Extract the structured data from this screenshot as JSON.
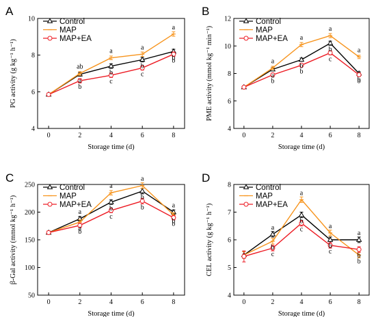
{
  "colors": {
    "Control": "#000000",
    "MAP": "#f7941d",
    "MAP+EA": "#ed1c24"
  },
  "chart_data": [
    {
      "type": "line",
      "panel": "A",
      "xlabel": "Storage time (d)",
      "ylabel": "PG activity (g kg⁻¹ h⁻¹)",
      "x": [
        0,
        2,
        4,
        6,
        8
      ],
      "xticks": [
        "0",
        "2",
        "4",
        "6",
        "8"
      ],
      "ylim": [
        4,
        10
      ],
      "yticks": [
        "4",
        "6",
        "8",
        "10"
      ],
      "legend": "top-left",
      "series": [
        {
          "name": "Control",
          "values": [
            5.85,
            6.95,
            7.4,
            7.75,
            8.2
          ],
          "err": [
            0.08,
            0.1,
            0.12,
            0.12,
            0.12
          ],
          "labels": [
            "",
            "a",
            "b",
            "b",
            "b"
          ]
        },
        {
          "name": "MAP",
          "values": [
            5.85,
            7.0,
            7.85,
            8.05,
            9.15
          ],
          "err": [
            0.08,
            0.1,
            0.1,
            0.12,
            0.12
          ],
          "labels": [
            "",
            "ab",
            "a",
            "a",
            "a"
          ]
        },
        {
          "name": "MAP+EA",
          "values": [
            5.85,
            6.6,
            6.9,
            7.3,
            8.05
          ],
          "err": [
            0.08,
            0.12,
            0.12,
            0.12,
            0.12
          ],
          "labels": [
            "",
            "b",
            "c",
            "c",
            "b"
          ]
        }
      ]
    },
    {
      "type": "line",
      "panel": "B",
      "xlabel": "Storage time (d)",
      "ylabel": "PME activity (mmol kg⁻¹ min⁻¹)",
      "x": [
        0,
        2,
        4,
        6,
        8
      ],
      "xticks": [
        "0",
        "2",
        "4",
        "6",
        "8"
      ],
      "ylim": [
        4,
        12
      ],
      "yticks": [
        "4",
        "6",
        "8",
        "10",
        "12"
      ],
      "legend": "top-left",
      "series": [
        {
          "name": "Control",
          "values": [
            7.0,
            8.3,
            9.0,
            10.2,
            8.0
          ],
          "err": [
            0.1,
            0.12,
            0.12,
            0.15,
            0.12
          ],
          "labels": [
            "",
            "a",
            "b",
            "b",
            "b"
          ]
        },
        {
          "name": "MAP",
          "values": [
            7.0,
            8.4,
            10.1,
            10.75,
            9.2
          ],
          "err": [
            0.1,
            0.12,
            0.15,
            0.15,
            0.12
          ],
          "labels": [
            "",
            "a",
            "a",
            "a",
            "a"
          ]
        },
        {
          "name": "MAP+EA",
          "values": [
            7.0,
            7.9,
            8.6,
            9.5,
            7.9
          ],
          "err": [
            0.1,
            0.12,
            0.12,
            0.15,
            0.12
          ],
          "labels": [
            "",
            "b",
            "b",
            "c",
            "b"
          ]
        }
      ]
    },
    {
      "type": "line",
      "panel": "C",
      "xlabel": "Storage time (d)",
      "ylabel": "β-Gal activity (mmol kg⁻¹ h⁻¹)",
      "x": [
        0,
        2,
        4,
        6,
        8
      ],
      "xticks": [
        "0",
        "2",
        "4",
        "6",
        "8"
      ],
      "ylim": [
        50,
        250
      ],
      "yticks": [
        "50",
        "100",
        "150",
        "200",
        "250"
      ],
      "legend": "top-left",
      "series": [
        {
          "name": "Control",
          "values": [
            163,
            188,
            218,
            238,
            200
          ],
          "err": [
            3,
            4,
            4,
            5,
            4
          ],
          "labels": [
            "",
            "a",
            "b",
            "b",
            "a"
          ]
        },
        {
          "name": "MAP",
          "values": [
            163,
            182,
            235,
            248,
            195
          ],
          "err": [
            3,
            4,
            4,
            5,
            4
          ],
          "labels": [
            "",
            "a",
            "a",
            "a",
            "b"
          ]
        },
        {
          "name": "MAP+EA",
          "values": [
            163,
            176,
            203,
            220,
            190
          ],
          "err": [
            3,
            4,
            4,
            5,
            4
          ],
          "labels": [
            "",
            "b",
            "c",
            "b",
            "b"
          ]
        }
      ]
    },
    {
      "type": "line",
      "panel": "D",
      "xlabel": "Storage time (d)",
      "ylabel": "CEL activity (g kg⁻¹ h⁻¹)",
      "x": [
        0,
        2,
        4,
        6,
        8
      ],
      "xticks": [
        "0",
        "2",
        "4",
        "6",
        "8"
      ],
      "ylim": [
        4,
        8
      ],
      "yticks": [
        "4",
        "5",
        "6",
        "7",
        "8"
      ],
      "legend": "top-left",
      "series": [
        {
          "name": "Control",
          "values": [
            5.45,
            6.2,
            6.9,
            6.0,
            6.0
          ],
          "err": [
            0.12,
            0.1,
            0.1,
            0.1,
            0.1
          ],
          "labels": [
            "",
            "a",
            "b",
            "b",
            "a"
          ]
        },
        {
          "name": "MAP",
          "values": [
            5.45,
            5.95,
            7.45,
            6.25,
            5.45
          ],
          "err": [
            0.12,
            0.1,
            0.1,
            0.1,
            0.1
          ],
          "labels": [
            "",
            "b",
            "a",
            "a",
            "b"
          ]
        },
        {
          "name": "MAP+EA",
          "values": [
            5.4,
            5.7,
            6.6,
            5.8,
            5.65
          ],
          "err": [
            0.2,
            0.1,
            0.1,
            0.1,
            0.1
          ],
          "labels": [
            "",
            "c",
            "c",
            "c",
            "b"
          ]
        }
      ]
    }
  ]
}
